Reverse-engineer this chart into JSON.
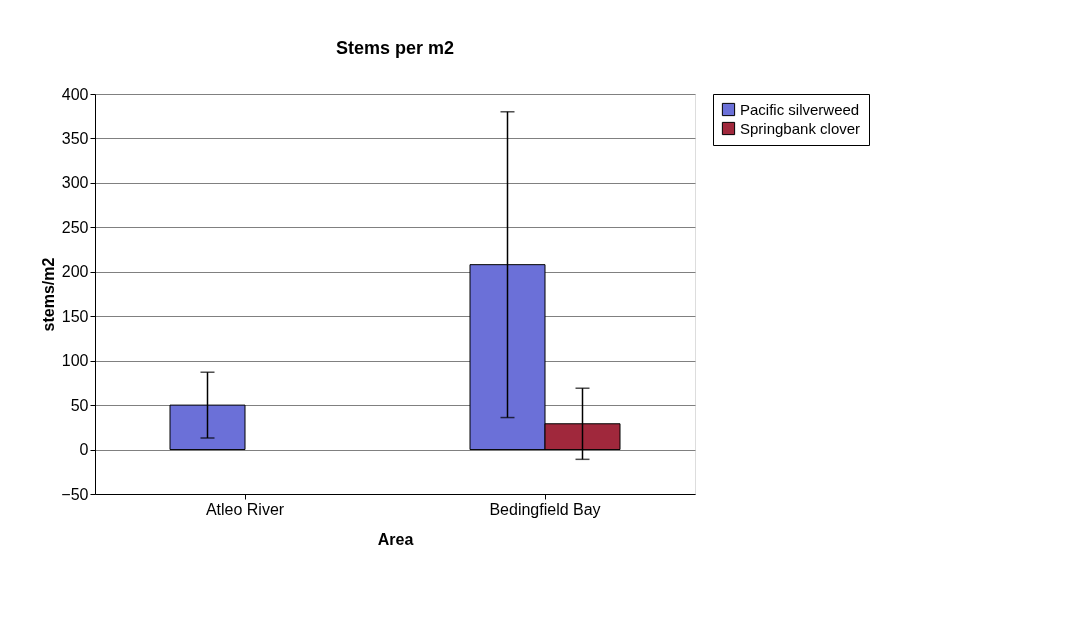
{
  "chart_data": {
    "type": "bar",
    "title": "Stems per m2",
    "xlabel": "Area",
    "ylabel": "stems/m2",
    "categories": [
      "Atleo River",
      "Bedingfield Bay"
    ],
    "series": [
      {
        "name": "Pacific silverweed",
        "color": "#6b70d8",
        "values": [
          50,
          208
        ],
        "errors": [
          [
            13,
            87
          ],
          [
            36,
            380
          ]
        ]
      },
      {
        "name": "Springbank clover",
        "color": "#a0283c",
        "values": [
          null,
          29
        ],
        "errors": [
          null,
          [
            -11,
            69
          ]
        ]
      }
    ],
    "ylim": [
      -50,
      400
    ],
    "yticks": [
      -50,
      0,
      50,
      100,
      150,
      200,
      250,
      300,
      350,
      400
    ],
    "grid": "y",
    "legend": "right"
  }
}
